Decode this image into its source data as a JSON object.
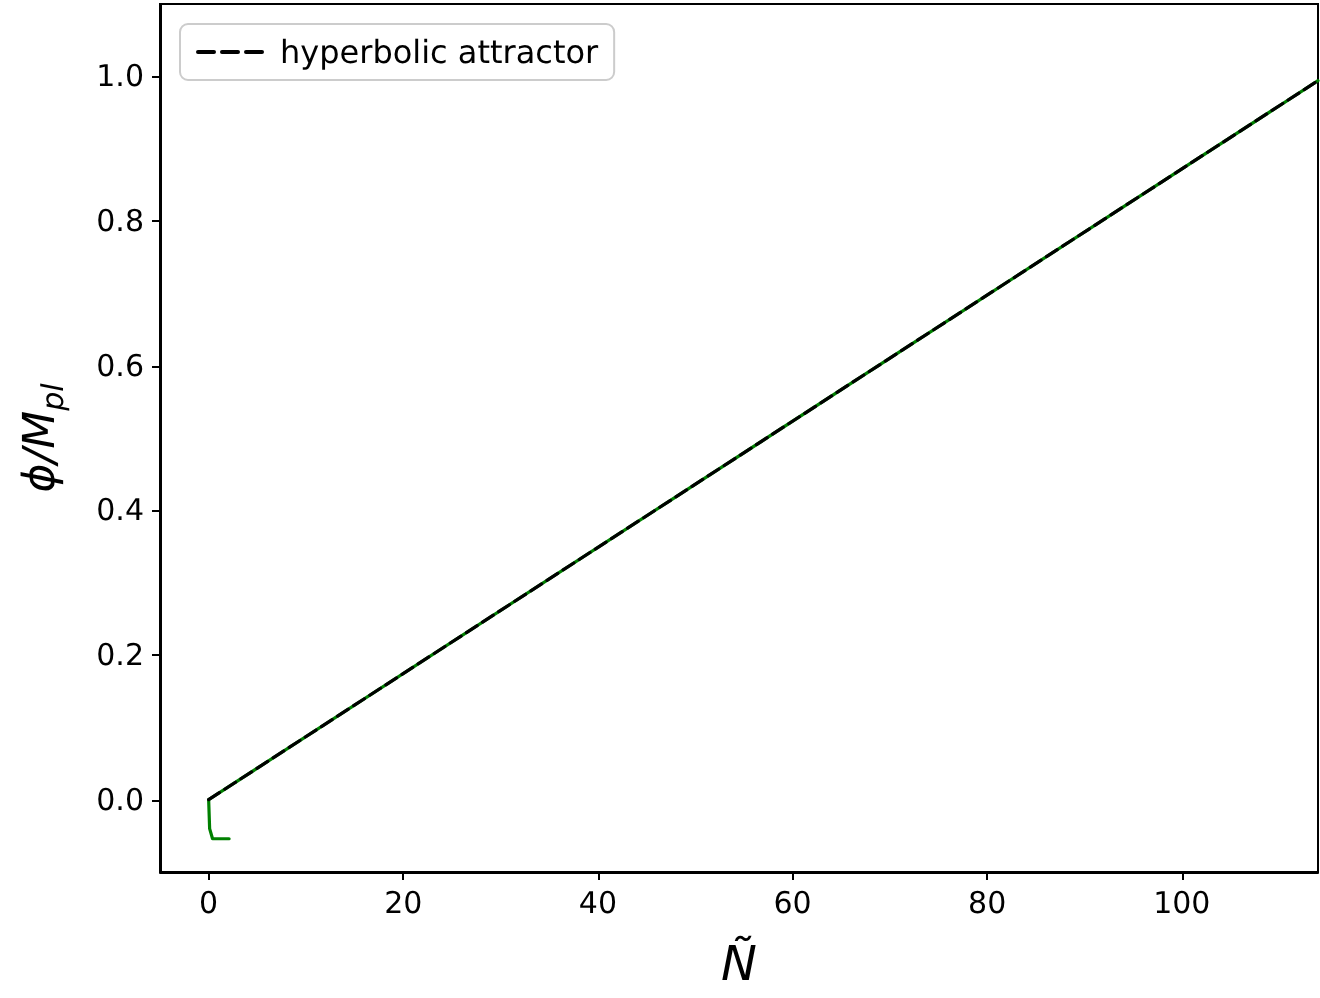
{
  "chart_data": {
    "type": "line",
    "xlabel": "Ñ",
    "ylabel": "ϕ/M$_{pl}$",
    "xlim": [
      -5,
      114
    ],
    "xticks": [
      0,
      20,
      40,
      60,
      80,
      100
    ],
    "ylim": [
      -0.1,
      1.1
    ],
    "yticks": [
      {
        "value": 0,
        "label": "0.0"
      },
      {
        "value": 0.2,
        "label": "0.2"
      },
      {
        "value": 0.4,
        "label": "0.4"
      },
      {
        "value": 0.6,
        "label": "0.6"
      },
      {
        "value": 0.8,
        "label": "0.8"
      },
      {
        "value": 1,
        "label": "1.0"
      }
    ],
    "legend": "top left",
    "grid": false,
    "marker": "none",
    "series": [
      {
        "color": "#008000",
        "line_style": "solid",
        "x": [
          2.1,
          0.4,
          0.1,
          0,
          114
        ],
        "values": [
          -0.054,
          -0.054,
          -0.04,
          0,
          0.994
        ]
      },
      {
        "name": "hyperbolic attractor",
        "color": "#000000",
        "line_style": "dashed",
        "x": [
          0,
          114
        ],
        "values": [
          0,
          0.994
        ]
      }
    ]
  }
}
